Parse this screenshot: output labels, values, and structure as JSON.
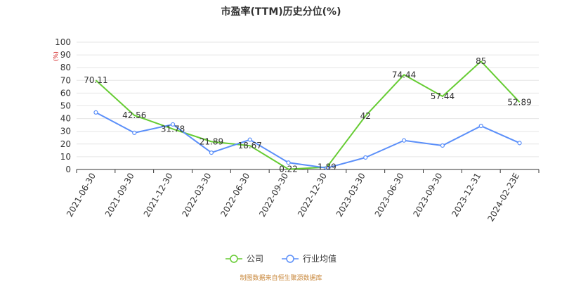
{
  "title": "市盈率(TTM)历史分位(%)",
  "unit_label": "(%)",
  "source_note": "制图数据来自恒生聚源数据库",
  "colors": {
    "company": "#66cc33",
    "industry": "#5b8ff9",
    "grid": "#e6e6e6",
    "axis": "#333333",
    "unit": "#cc0000"
  },
  "chart_data": {
    "type": "line",
    "categories": [
      "2021-06-30",
      "2021-09-30",
      "2021-12-30",
      "2022-03-30",
      "2022-06-30",
      "2022-09-30",
      "2022-12-30",
      "2023-03-30",
      "2023-06-30",
      "2023-09-30",
      "2023-12-31",
      "2024-02-23E"
    ],
    "ylim": [
      0,
      100
    ],
    "yticks": [
      0,
      10,
      20,
      30,
      40,
      50,
      60,
      70,
      80,
      90,
      100
    ],
    "grid": true,
    "legend_position": "bottom",
    "series": [
      {
        "name": "公司",
        "values": [
          70.11,
          42.56,
          31.78,
          21.89,
          18.67,
          0.22,
          1.89,
          42,
          74.44,
          57.44,
          85,
          52.89
        ],
        "labels": [
          "70.11",
          "42.56",
          "31.78",
          "21.89",
          "18.67",
          "0.22",
          "1.89",
          "42",
          "74.44",
          "57.44",
          "85",
          "52.89"
        ],
        "show_markers": false
      },
      {
        "name": "行业均值",
        "values": [
          44.8,
          28.8,
          35.4,
          13.2,
          23.4,
          5.4,
          1.2,
          9.4,
          22.8,
          18.8,
          34.2,
          20.8
        ],
        "show_markers": true
      }
    ]
  }
}
